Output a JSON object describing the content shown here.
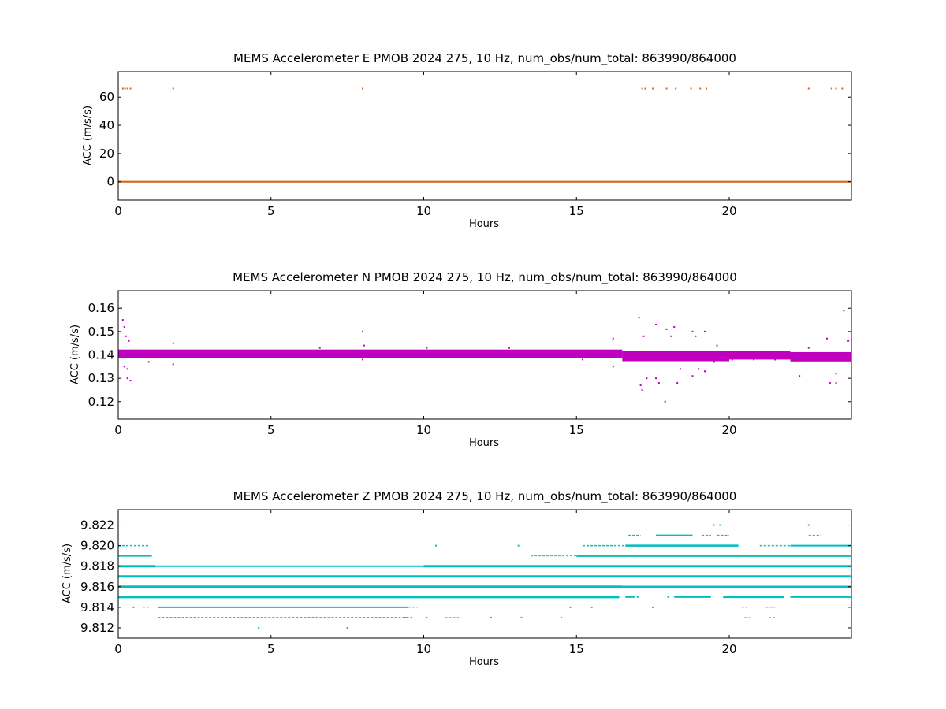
{
  "chart_data": [
    {
      "type": "scatter",
      "title": "MEMS Accelerometer E PMOB 2024 275, 10 Hz, num_obs/num_total: 863990/864000",
      "xlabel": "Hours",
      "ylabel": "ACC (m/s/s)",
      "xlim": [
        0,
        24
      ],
      "ylim": [
        -13,
        78
      ],
      "xticks": [
        0,
        5,
        10,
        15,
        20
      ],
      "yticks": [
        0,
        20,
        40,
        60
      ],
      "ytick_labels": [
        "0",
        "20",
        "40",
        "60"
      ],
      "color": "#d2691e",
      "series": [
        {
          "kind": "band",
          "x": [
            0,
            24
          ],
          "y_center": 0,
          "y_halfwidth": 0.6
        },
        {
          "kind": "points",
          "points": [
            [
              0.15,
              66
            ],
            [
              0.22,
              66
            ],
            [
              0.3,
              66
            ],
            [
              0.4,
              66
            ],
            [
              1.8,
              66
            ],
            [
              8.0,
              66
            ],
            [
              17.15,
              66
            ],
            [
              17.25,
              66
            ],
            [
              17.5,
              66
            ],
            [
              17.95,
              66
            ],
            [
              18.25,
              66
            ],
            [
              18.75,
              66
            ],
            [
              19.05,
              66
            ],
            [
              19.25,
              66
            ],
            [
              22.6,
              66
            ],
            [
              23.35,
              66
            ],
            [
              23.5,
              66
            ],
            [
              23.7,
              66
            ]
          ]
        }
      ]
    },
    {
      "type": "scatter",
      "title": "MEMS Accelerometer N PMOB 2024 275, 10 Hz, num_obs/num_total: 863990/864000",
      "xlabel": "Hours",
      "ylabel": "ACC (m/s/s)",
      "xlim": [
        0,
        24
      ],
      "ylim": [
        0.1125,
        0.1675
      ],
      "xticks": [
        0,
        5,
        10,
        15,
        20
      ],
      "yticks": [
        0.12,
        0.13,
        0.14,
        0.15,
        0.16
      ],
      "ytick_labels": [
        "0.12",
        "0.13",
        "0.14",
        "0.15",
        "0.16"
      ],
      "color": "#bf00bf",
      "series": [
        {
          "kind": "band",
          "x": [
            0,
            16.5
          ],
          "y_center": 0.1405,
          "y_halfwidth": 0.0018
        },
        {
          "kind": "band",
          "x": [
            16.5,
            20.0
          ],
          "y_center": 0.1395,
          "y_halfwidth": 0.0022
        },
        {
          "kind": "band",
          "x": [
            20.0,
            22.0
          ],
          "y_center": 0.1398,
          "y_halfwidth": 0.0018
        },
        {
          "kind": "band",
          "x": [
            22.0,
            24
          ],
          "y_center": 0.1392,
          "y_halfwidth": 0.002
        },
        {
          "kind": "points",
          "points": [
            [
              0.1,
              0.16
            ],
            [
              0.15,
              0.155
            ],
            [
              0.2,
              0.152
            ],
            [
              0.25,
              0.148
            ],
            [
              0.3,
              0.13
            ],
            [
              0.35,
              0.146
            ],
            [
              0.4,
              0.129
            ],
            [
              0.2,
              0.135
            ],
            [
              0.3,
              0.134
            ],
            [
              1.0,
              0.137
            ],
            [
              1.8,
              0.145
            ],
            [
              1.8,
              0.136
            ],
            [
              6.6,
              0.143
            ],
            [
              8.0,
              0.15
            ],
            [
              8.0,
              0.138
            ],
            [
              8.05,
              0.144
            ],
            [
              10.1,
              0.143
            ],
            [
              12.8,
              0.143
            ],
            [
              15.2,
              0.138
            ],
            [
              16.2,
              0.147
            ],
            [
              16.2,
              0.135
            ],
            [
              17.05,
              0.156
            ],
            [
              17.1,
              0.127
            ],
            [
              17.15,
              0.125
            ],
            [
              17.2,
              0.148
            ],
            [
              17.3,
              0.13
            ],
            [
              17.6,
              0.153
            ],
            [
              17.6,
              0.13
            ],
            [
              17.7,
              0.128
            ],
            [
              17.9,
              0.12
            ],
            [
              17.95,
              0.151
            ],
            [
              18.1,
              0.148
            ],
            [
              18.2,
              0.152
            ],
            [
              18.3,
              0.128
            ],
            [
              18.4,
              0.134
            ],
            [
              18.8,
              0.15
            ],
            [
              18.8,
              0.131
            ],
            [
              18.9,
              0.148
            ],
            [
              19.0,
              0.134
            ],
            [
              19.2,
              0.15
            ],
            [
              19.2,
              0.133
            ],
            [
              19.5,
              0.137
            ],
            [
              19.6,
              0.144
            ],
            [
              20.1,
              0.138
            ],
            [
              20.8,
              0.138
            ],
            [
              21.5,
              0.138
            ],
            [
              22.3,
              0.131
            ],
            [
              22.6,
              0.143
            ],
            [
              23.2,
              0.147
            ],
            [
              23.3,
              0.128
            ],
            [
              23.5,
              0.128
            ],
            [
              23.5,
              0.132
            ],
            [
              23.75,
              0.159
            ],
            [
              23.9,
              0.146
            ],
            [
              24.0,
              0.133
            ]
          ]
        }
      ]
    },
    {
      "type": "scatter",
      "title": "MEMS Accelerometer Z PMOB 2024 275, 10 Hz, num_obs/num_total: 863990/864000",
      "xlabel": "Hours",
      "ylabel": "ACC (m/s/s)",
      "xlim": [
        0,
        24
      ],
      "ylim": [
        9.811,
        9.8235
      ],
      "xticks": [
        0,
        5,
        10,
        15,
        20
      ],
      "yticks": [
        9.812,
        9.814,
        9.816,
        9.818,
        9.82,
        9.822
      ],
      "ytick_labels": [
        "9.812",
        "9.814",
        "9.816",
        "9.818",
        "9.820",
        "9.822"
      ],
      "color": "#00bfbf",
      "series": [
        {
          "kind": "segments",
          "y": 9.818,
          "segments": [
            [
              0,
              1.2,
              3
            ],
            [
              1.2,
              10.0,
              2
            ],
            [
              10.0,
              24,
              3
            ]
          ]
        },
        {
          "kind": "segments",
          "y": 9.817,
          "segments": [
            [
              0,
              24,
              3
            ]
          ]
        },
        {
          "kind": "segments",
          "y": 9.816,
          "segments": [
            [
              0,
              16.5,
              3
            ],
            [
              16.5,
              24,
              2.5
            ]
          ]
        },
        {
          "kind": "segments",
          "y": 9.815,
          "segments": [
            [
              0,
              16.4,
              3
            ],
            [
              16.6,
              16.9,
              2
            ],
            [
              18.2,
              19.4,
              2
            ],
            [
              19.8,
              21.8,
              2.5
            ],
            [
              22.0,
              24,
              2
            ]
          ]
        },
        {
          "kind": "segments",
          "y": 9.819,
          "segments": [
            [
              0,
              1.1,
              2
            ],
            [
              13.5,
              15.0,
              1
            ],
            [
              15.0,
              24,
              2.5
            ]
          ]
        },
        {
          "kind": "segments",
          "y": 9.814,
          "segments": [
            [
              0.8,
              1.0,
              1
            ],
            [
              1.3,
              9.5,
              2
            ],
            [
              9.5,
              9.8,
              1
            ],
            [
              20.4,
              20.6,
              1
            ],
            [
              21.2,
              21.5,
              1
            ]
          ]
        },
        {
          "kind": "segments",
          "y": 9.82,
          "segments": [
            [
              0.0,
              1.0,
              1.5
            ],
            [
              15.2,
              16.6,
              1.5
            ],
            [
              16.6,
              20.3,
              2.5
            ],
            [
              21.0,
              22.0,
              1.5
            ],
            [
              22.0,
              24,
              2
            ]
          ]
        },
        {
          "kind": "segments",
          "y": 9.813,
          "segments": [
            [
              1.3,
              9.6,
              1.5
            ],
            [
              10.7,
              11.2,
              1
            ],
            [
              20.5,
              20.7,
              1
            ],
            [
              21.3,
              21.5,
              1
            ]
          ]
        },
        {
          "kind": "segments",
          "y": 9.821,
          "segments": [
            [
              16.7,
              17.1,
              1.5
            ],
            [
              17.6,
              18.8,
              2
            ],
            [
              19.1,
              19.4,
              1.5
            ],
            [
              19.6,
              20.0,
              1.5
            ],
            [
              22.6,
              23.0,
              1.5
            ]
          ]
        },
        {
          "kind": "points",
          "points": [
            [
              9.4,
              9.813
            ],
            [
              10.1,
              9.813
            ],
            [
              12.2,
              9.813
            ],
            [
              13.2,
              9.813
            ],
            [
              14.5,
              9.813
            ],
            [
              0.5,
              9.814
            ],
            [
              14.8,
              9.814
            ],
            [
              15.5,
              9.814
            ],
            [
              17.5,
              9.814
            ],
            [
              4.6,
              9.812
            ],
            [
              7.5,
              9.812
            ],
            [
              10.4,
              9.82
            ],
            [
              13.1,
              9.82
            ],
            [
              19.5,
              9.822
            ],
            [
              19.7,
              9.822
            ],
            [
              22.6,
              9.822
            ],
            [
              17.0,
              9.815
            ],
            [
              18.0,
              9.815
            ],
            [
              21.0,
              9.815
            ]
          ]
        }
      ]
    }
  ]
}
